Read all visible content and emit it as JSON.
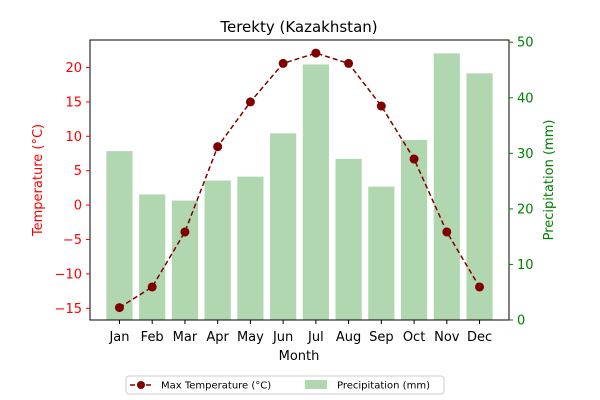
{
  "chart_data": {
    "type": "bar",
    "title": "Terekty (Kazakhstan)",
    "xlabel": "Month",
    "categories": [
      "Jan",
      "Feb",
      "Mar",
      "Apr",
      "May",
      "Jun",
      "Jul",
      "Aug",
      "Sep",
      "Oct",
      "Nov",
      "Dec"
    ],
    "series": [
      {
        "name": "Max Temperature (°C)",
        "type": "line",
        "axis": "left",
        "color": "#800000",
        "line_style": "dashed",
        "marker": "circle",
        "values": [
          -14.9,
          -11.9,
          -3.9,
          8.5,
          15.0,
          20.6,
          22.1,
          20.6,
          14.4,
          6.7,
          -3.9,
          -11.9
        ]
      },
      {
        "name": "Precipitation (mm)",
        "type": "bar",
        "axis": "right",
        "color": "#b1d7b1",
        "values": [
          30.4,
          22.6,
          21.5,
          25.1,
          25.8,
          33.6,
          46.0,
          29.0,
          24.0,
          32.4,
          48.0,
          44.4
        ]
      }
    ],
    "y_left": {
      "label": "Temperature (°C)",
      "color": "#ff0000",
      "ylim": [
        -16.7,
        24.0
      ],
      "ticks": [
        -15,
        -10,
        -5,
        0,
        5,
        10,
        15,
        20
      ]
    },
    "y_right": {
      "label": "Precipitation (mm)",
      "color": "#008000",
      "ylim": [
        0,
        50.4
      ],
      "ticks": [
        0,
        10,
        20,
        30,
        40,
        50
      ]
    },
    "legend_position": "bottom-center",
    "grid": false
  }
}
